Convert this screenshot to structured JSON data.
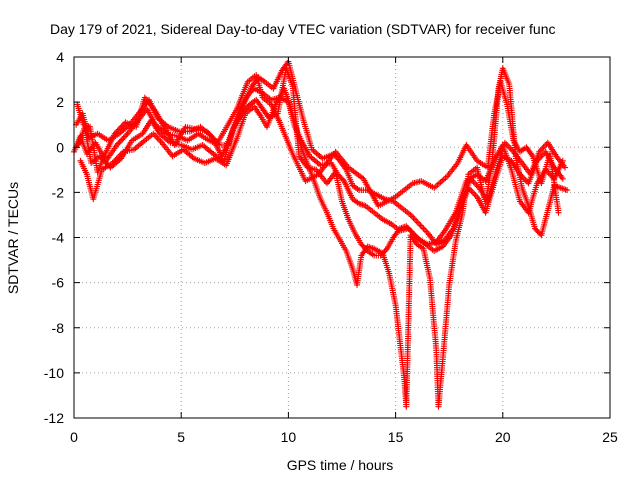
{
  "chart_data": {
    "type": "scatter",
    "title": "Day 179 of 2021, Sidereal Day-to-day VTEC variation (SDTVAR) for receiver func",
    "xlabel": "GPS time / hours",
    "ylabel": "SDTVAR / TECUs",
    "xlim": [
      0,
      25
    ],
    "ylim": [
      -12,
      4
    ],
    "xticks": [
      "0",
      "5",
      "10",
      "15",
      "20",
      "25"
    ],
    "yticks": [
      "4",
      "2",
      "0",
      "-2",
      "-4",
      "-6",
      "-8",
      "-10",
      "-12"
    ],
    "grid": true,
    "marker": "+",
    "color": "#ff0000",
    "series": [
      {
        "points": [
          [
            0.0,
            -0.2
          ],
          [
            0.3,
            0.5
          ],
          [
            0.6,
            -0.3
          ],
          [
            1.0,
            0.2
          ],
          [
            1.5,
            -0.6
          ],
          [
            2.0,
            0.1
          ],
          [
            2.5,
            0.6
          ],
          [
            3.0,
            1.2
          ],
          [
            3.4,
            1.7
          ],
          [
            3.8,
            1.0
          ],
          [
            4.3,
            0.6
          ],
          [
            4.8,
            0.5
          ],
          [
            5.3,
            0.3
          ],
          [
            5.8,
            0.6
          ],
          [
            6.3,
            0.3
          ],
          [
            6.8,
            0.1
          ],
          [
            7.2,
            0.1
          ],
          [
            7.5,
            1.0
          ],
          [
            7.8,
            1.8
          ],
          [
            8.1,
            2.3
          ],
          [
            8.4,
            2.6
          ],
          [
            8.8,
            2.4
          ],
          [
            9.2,
            2.1
          ],
          [
            9.6,
            2.2
          ],
          [
            10.0,
            2.0
          ],
          [
            10.3,
            0.9
          ],
          [
            10.6,
            0.3
          ],
          [
            11.0,
            -0.4
          ],
          [
            11.5,
            -0.8
          ],
          [
            12.0,
            -0.7
          ],
          [
            12.3,
            -1.2
          ],
          [
            12.6,
            -1.5
          ],
          [
            13.0,
            -2.3
          ],
          [
            13.3,
            -2.5
          ],
          [
            13.6,
            -2.6
          ],
          [
            14.0,
            -2.9
          ],
          [
            14.4,
            -3.2
          ],
          [
            14.8,
            -3.4
          ],
          [
            15.2,
            -3.7
          ],
          [
            15.6,
            -3.6
          ],
          [
            16.0,
            -4.0
          ],
          [
            16.4,
            -4.3
          ],
          [
            16.8,
            -4.6
          ],
          [
            17.2,
            -4.4
          ],
          [
            17.6,
            -3.9
          ],
          [
            18.0,
            -2.8
          ],
          [
            18.4,
            -1.8
          ],
          [
            18.8,
            -2.2
          ],
          [
            19.2,
            -2.9
          ],
          [
            19.6,
            -1.6
          ],
          [
            20.0,
            -0.4
          ],
          [
            20.4,
            -0.6
          ],
          [
            20.8,
            -1.2
          ],
          [
            21.2,
            -1.6
          ],
          [
            21.6,
            -0.6
          ],
          [
            22.0,
            -0.2
          ],
          [
            22.4,
            -0.9
          ],
          [
            22.8,
            -1.4
          ]
        ]
      },
      {
        "points": [
          [
            0.1,
            1.0
          ],
          [
            0.4,
            1.5
          ],
          [
            0.7,
            0.4
          ],
          [
            1.1,
            0.6
          ],
          [
            1.6,
            0.3
          ],
          [
            2.1,
            0.6
          ],
          [
            2.6,
            1.0
          ],
          [
            3.1,
            1.6
          ],
          [
            3.5,
            2.1
          ],
          [
            3.9,
            1.3
          ],
          [
            4.4,
            0.9
          ],
          [
            4.9,
            0.7
          ],
          [
            5.4,
            0.7
          ],
          [
            5.9,
            0.9
          ],
          [
            6.4,
            0.5
          ],
          [
            6.9,
            -0.4
          ],
          [
            7.3,
            0.5
          ],
          [
            7.7,
            1.4
          ],
          [
            8.0,
            2.1
          ],
          [
            8.3,
            2.7
          ],
          [
            8.6,
            3.1
          ],
          [
            8.9,
            2.9
          ],
          [
            9.3,
            2.6
          ],
          [
            9.7,
            3.4
          ],
          [
            10.0,
            3.8
          ],
          [
            10.4,
            2.3
          ],
          [
            10.7,
            1.2
          ],
          [
            11.1,
            -0.1
          ],
          [
            11.6,
            -0.5
          ],
          [
            12.1,
            -0.3
          ],
          [
            12.4,
            -0.6
          ],
          [
            12.7,
            -1.0
          ],
          [
            13.0,
            -1.7
          ],
          [
            13.3,
            -1.9
          ],
          [
            13.7,
            -1.9
          ],
          [
            14.1,
            -2.1
          ],
          [
            14.5,
            -2.3
          ],
          [
            14.9,
            -2.4
          ],
          [
            15.3,
            -2.7
          ],
          [
            15.7,
            -3.0
          ],
          [
            16.1,
            -3.4
          ],
          [
            16.5,
            -3.8
          ],
          [
            16.9,
            -4.3
          ],
          [
            17.3,
            -4.1
          ],
          [
            17.7,
            -3.6
          ],
          [
            18.1,
            -2.4
          ],
          [
            18.5,
            -1.4
          ],
          [
            18.9,
            -1.8
          ],
          [
            19.3,
            -2.4
          ],
          [
            19.7,
            -1.0
          ],
          [
            20.1,
            0.2
          ],
          [
            20.5,
            -0.2
          ],
          [
            20.9,
            -0.7
          ],
          [
            21.3,
            -1.2
          ],
          [
            21.7,
            -0.2
          ],
          [
            22.1,
            0.2
          ],
          [
            22.5,
            -0.4
          ],
          [
            22.9,
            -0.9
          ]
        ]
      },
      {
        "points": [
          [
            0.2,
            0.1
          ],
          [
            0.5,
            0.9
          ],
          [
            0.8,
            -0.7
          ],
          [
            1.2,
            -0.4
          ],
          [
            1.7,
            -0.9
          ],
          [
            2.2,
            -0.5
          ],
          [
            2.7,
            0.3
          ],
          [
            3.2,
            0.6
          ],
          [
            3.6,
            1.2
          ],
          [
            4.0,
            0.6
          ],
          [
            4.5,
            0.2
          ],
          [
            5.0,
            0.1
          ],
          [
            5.5,
            -0.1
          ],
          [
            6.0,
            0.1
          ],
          [
            6.5,
            -0.3
          ],
          [
            7.0,
            -0.6
          ],
          [
            7.4,
            0.8
          ],
          [
            7.9,
            1.6
          ],
          [
            8.2,
            1.9
          ],
          [
            8.5,
            2.1
          ],
          [
            8.8,
            1.7
          ],
          [
            9.1,
            1.3
          ],
          [
            9.5,
            1.5
          ],
          [
            9.9,
            3.5
          ],
          [
            10.2,
            2.7
          ],
          [
            10.5,
            -0.4
          ],
          [
            10.9,
            -0.9
          ],
          [
            11.3,
            -1.0
          ],
          [
            11.8,
            -1.6
          ],
          [
            12.2,
            -1.1
          ],
          [
            12.5,
            -2.4
          ],
          [
            12.8,
            -3.2
          ],
          [
            13.1,
            -3.8
          ],
          [
            13.4,
            -4.3
          ],
          [
            13.7,
            -4.6
          ],
          [
            14.0,
            -4.8
          ],
          [
            14.3,
            -4.8
          ],
          [
            14.6,
            -4.5
          ],
          [
            14.9,
            -4.0
          ],
          [
            15.2,
            -3.6
          ],
          [
            15.5,
            -3.5
          ],
          [
            15.8,
            -3.8
          ],
          [
            16.1,
            -4.1
          ],
          [
            16.5,
            -4.3
          ],
          [
            16.9,
            -4.2
          ],
          [
            17.3,
            -3.7
          ],
          [
            17.8,
            -2.9
          ],
          [
            18.3,
            -1.5
          ],
          [
            18.8,
            -1.2
          ],
          [
            19.2,
            -1.5
          ],
          [
            19.6,
            -0.6
          ],
          [
            20.0,
            0.1
          ],
          [
            20.4,
            -1.0
          ],
          [
            20.8,
            -2.4
          ],
          [
            21.2,
            -2.9
          ],
          [
            21.6,
            -1.6
          ],
          [
            22.0,
            -1.0
          ],
          [
            22.4,
            -1.4
          ],
          [
            22.8,
            -0.6
          ]
        ]
      },
      {
        "points": [
          [
            0.3,
            -0.6
          ],
          [
            0.6,
            -1.2
          ],
          [
            0.9,
            -2.3
          ],
          [
            1.3,
            -1.0
          ],
          [
            1.8,
            -0.7
          ],
          [
            2.3,
            -0.2
          ],
          [
            2.8,
            -0.1
          ],
          [
            3.3,
            0.3
          ],
          [
            3.7,
            0.6
          ],
          [
            4.1,
            0.2
          ],
          [
            4.6,
            -0.4
          ],
          [
            5.1,
            -0.1
          ],
          [
            5.6,
            -0.5
          ],
          [
            6.1,
            -0.7
          ],
          [
            6.6,
            -0.5
          ],
          [
            7.1,
            -0.8
          ],
          [
            7.6,
            0.4
          ],
          [
            8.0,
            1.5
          ],
          [
            8.4,
            1.8
          ],
          [
            8.7,
            1.4
          ],
          [
            9.0,
            0.9
          ],
          [
            9.4,
            1.9
          ],
          [
            9.8,
            2.6
          ],
          [
            10.1,
            1.8
          ],
          [
            10.6,
            0.0
          ],
          [
            11.2,
            -1.5
          ],
          [
            11.5,
            -2.3
          ],
          [
            11.8,
            -2.9
          ],
          [
            12.1,
            -3.6
          ],
          [
            12.4,
            -4.1
          ],
          [
            12.7,
            -4.6
          ],
          [
            13.0,
            -5.4
          ],
          [
            13.2,
            -6.1
          ],
          [
            13.4,
            -4.8
          ],
          [
            13.7,
            -4.4
          ],
          [
            14.0,
            -4.5
          ],
          [
            14.4,
            -4.7
          ],
          [
            14.7,
            -5.6
          ],
          [
            15.0,
            -7.0
          ],
          [
            15.2,
            -8.6
          ],
          [
            15.4,
            -10.2
          ],
          [
            15.5,
            -11.5
          ],
          [
            15.7,
            -3.9
          ],
          [
            16.0,
            -4.3
          ],
          [
            16.3,
            -4.5
          ],
          [
            16.6,
            -5.8
          ],
          [
            16.9,
            -9.0
          ],
          [
            17.0,
            -11.5
          ],
          [
            17.2,
            -9.4
          ],
          [
            17.5,
            -6.1
          ],
          [
            17.8,
            -4.2
          ],
          [
            18.1,
            -3.0
          ],
          [
            18.4,
            -1.2
          ],
          [
            18.8,
            -0.9
          ],
          [
            19.2,
            -2.5
          ],
          [
            19.5,
            -0.7
          ],
          [
            19.8,
            2.6
          ],
          [
            20.0,
            3.5
          ],
          [
            20.3,
            2.8
          ],
          [
            20.6,
            -0.4
          ],
          [
            20.9,
            -1.8
          ],
          [
            21.2,
            -2.6
          ],
          [
            21.5,
            -3.6
          ],
          [
            21.8,
            -3.9
          ],
          [
            22.1,
            -2.8
          ],
          [
            22.4,
            -1.7
          ],
          [
            22.7,
            -1.8
          ],
          [
            23.0,
            -1.9
          ]
        ]
      },
      {
        "points": [
          [
            0.15,
            1.9
          ],
          [
            0.45,
            1.0
          ],
          [
            0.75,
            0.9
          ],
          [
            1.1,
            -1.1
          ],
          [
            1.45,
            -0.3
          ],
          [
            1.9,
            0.6
          ],
          [
            2.4,
            1.1
          ],
          [
            2.9,
            0.9
          ],
          [
            3.3,
            2.2
          ],
          [
            3.8,
            1.6
          ],
          [
            4.2,
            0.9
          ],
          [
            4.7,
            0.1
          ],
          [
            5.2,
            0.9
          ],
          [
            5.7,
            0.8
          ],
          [
            6.2,
            0.7
          ],
          [
            6.7,
            0.2
          ],
          [
            7.6,
            1.7
          ],
          [
            8.1,
            2.9
          ],
          [
            8.5,
            3.2
          ],
          [
            8.8,
            2.2
          ],
          [
            9.2,
            1.9
          ],
          [
            9.6,
            1.1
          ],
          [
            10.2,
            -0.3
          ],
          [
            10.8,
            -1.5
          ],
          [
            11.4,
            -1.2
          ],
          [
            12.2,
            -0.2
          ],
          [
            12.8,
            -0.9
          ],
          [
            13.5,
            -1.4
          ],
          [
            14.2,
            -2.6
          ],
          [
            15.0,
            -2.2
          ],
          [
            15.8,
            -1.6
          ],
          [
            16.2,
            -1.5
          ],
          [
            16.8,
            -1.8
          ],
          [
            17.4,
            -1.3
          ],
          [
            17.9,
            -0.7
          ],
          [
            18.3,
            0.1
          ],
          [
            18.8,
            -0.6
          ],
          [
            19.3,
            -0.9
          ],
          [
            19.6,
            1.5
          ],
          [
            19.9,
            2.9
          ],
          [
            20.2,
            1.9
          ],
          [
            20.5,
            0.3
          ],
          [
            20.8,
            -0.2
          ],
          [
            21.1,
            0.0
          ],
          [
            21.4,
            -0.4
          ],
          [
            21.8,
            -1.6
          ],
          [
            22.2,
            -0.3
          ],
          [
            22.6,
            -2.9
          ]
        ]
      }
    ]
  }
}
